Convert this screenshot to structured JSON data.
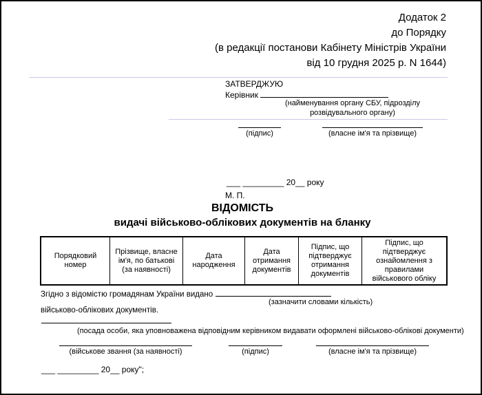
{
  "ref_block": {
    "line1": "Додаток 2",
    "line2": "до Порядку",
    "line3": "(в редакції постанови Кабінету Міністрів України",
    "line4": "від 10 грудня 2025 р. N 1644)"
  },
  "approval": {
    "approve_word": "ЗАТВЕРДЖУЮ",
    "kerivnyk_label": "Керівник",
    "org_caption_line1": "(найменування органу СБУ, підрозділу",
    "org_caption_line2": "розвідувального органу)",
    "signature_caption": "(підпис)",
    "name_caption": "(власне ім'я та прізвище)",
    "date_line": "___ _________ 20__ року",
    "seal_label": "М. П."
  },
  "title": {
    "line1": "ВІДОМІСТЬ",
    "line2": "видачі військово-облікових документів на бланку"
  },
  "table": {
    "columns": [
      "Порядковий номер",
      "Прізвище, власне ім'я, по батькові (за наявності)",
      "Дата народження",
      "Дата отримання документів",
      "Підпис, що підтверджує отримання документів",
      "Підпис, що підтверджує ознайомлення з правилами військового обліку"
    ]
  },
  "body": {
    "issued_prefix": "Згідно з відомістю громадянам України видано",
    "issued_caption": "(зазначити словами кількість)",
    "issued_suffix": "військово-облікових документів.",
    "position_caption": "(посада особи, яка уповноважена відповідним керівником видавати оформлені військово-облікові документи)",
    "rank_caption": "(військове звання (за наявності)",
    "signature_caption": "(підпис)",
    "name_caption": "(власне ім'я та прізвище)",
    "date_line": "___ _________ 20__ року\";"
  }
}
